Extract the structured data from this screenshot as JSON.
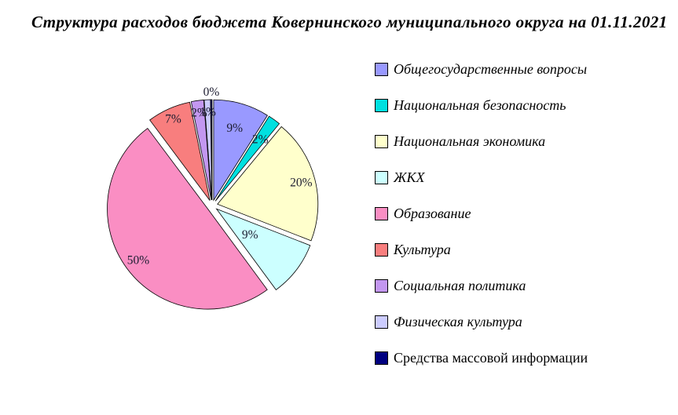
{
  "title": "Структура расходов бюджета Ковернинского муниципального округа на 01.11.2021",
  "chart_data": {
    "type": "pie",
    "title": "Структура расходов бюджета Ковернинского муниципального округа на 01.11.2021",
    "legend_position": "right",
    "direction": "clockwise",
    "start_angle_deg": 0,
    "exploded": true,
    "labels": "percent, shown on slices",
    "slices": [
      {
        "label": "Общегосударственные вопросы",
        "value": 9,
        "display": "9%",
        "color": "#9999FF"
      },
      {
        "label": "Национальная безопасность",
        "value": 2,
        "display": "2%",
        "color": "#00E0E0"
      },
      {
        "label": "Национальная экономика",
        "value": 20,
        "display": "20%",
        "color": "#FFFFCC"
      },
      {
        "label": "ЖКХ",
        "value": 9,
        "display": "9%",
        "color": "#CCFFFF"
      },
      {
        "label": "Образование",
        "value": 50,
        "display": "50%",
        "color": "#FA8EC3"
      },
      {
        "label": "Культура",
        "value": 7,
        "display": "7%",
        "color": "#F87E7E"
      },
      {
        "label": "Социальная политика",
        "value": 2,
        "display": "2%",
        "color": "#C397F0"
      },
      {
        "label": "Физическая культура",
        "value": 1,
        "display": "1%",
        "color": "#CCCCFF"
      },
      {
        "label": "Средства массовой информации",
        "value": 0,
        "display": "0%",
        "color": "#000080"
      }
    ]
  }
}
